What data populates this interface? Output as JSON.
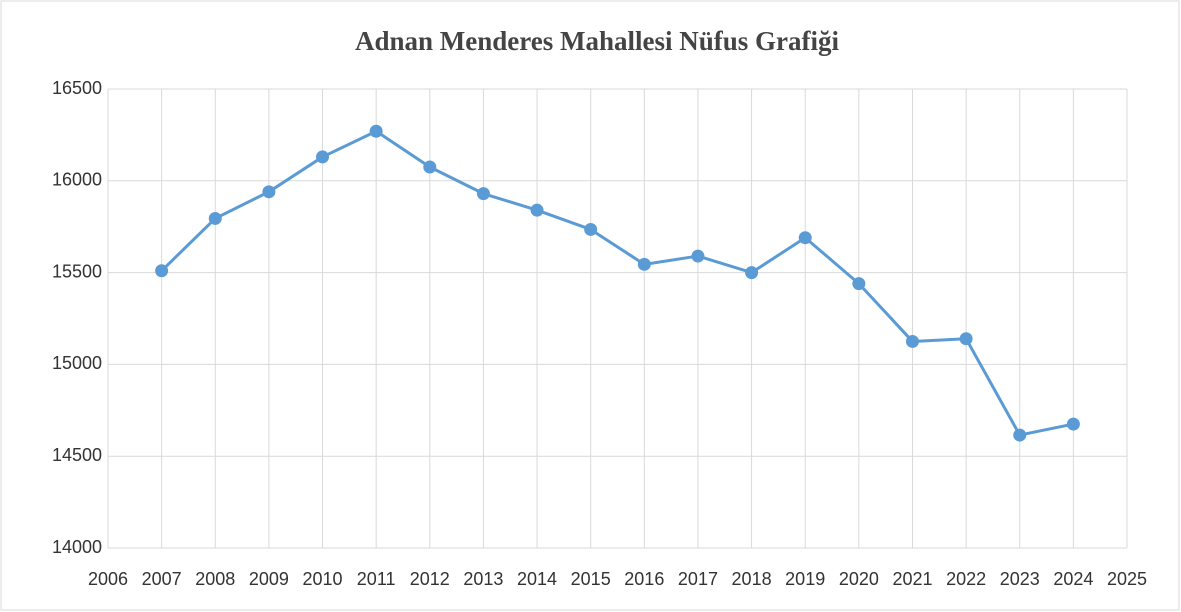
{
  "chart_data": {
    "type": "line",
    "title": "Adnan Menderes Mahallesi Nüfus Grafiği",
    "x": [
      2007,
      2008,
      2009,
      2010,
      2011,
      2012,
      2013,
      2014,
      2015,
      2016,
      2017,
      2018,
      2019,
      2020,
      2021,
      2022,
      2023,
      2024
    ],
    "series": [
      {
        "name": "Nüfus",
        "color": "#5b9bd5",
        "values": [
          15510,
          15795,
          15940,
          16130,
          16270,
          16075,
          15930,
          15840,
          15735,
          15545,
          15590,
          15500,
          15690,
          15440,
          15125,
          15140,
          14615,
          14675
        ]
      }
    ],
    "xlim": [
      2006,
      2025
    ],
    "xticks": [
      2006,
      2007,
      2008,
      2009,
      2010,
      2011,
      2012,
      2013,
      2014,
      2015,
      2016,
      2017,
      2018,
      2019,
      2020,
      2021,
      2022,
      2023,
      2024,
      2025
    ],
    "ylim": [
      14000,
      16500
    ],
    "yticks": [
      14000,
      14500,
      15000,
      15500,
      16000,
      16500
    ],
    "grid": true
  }
}
